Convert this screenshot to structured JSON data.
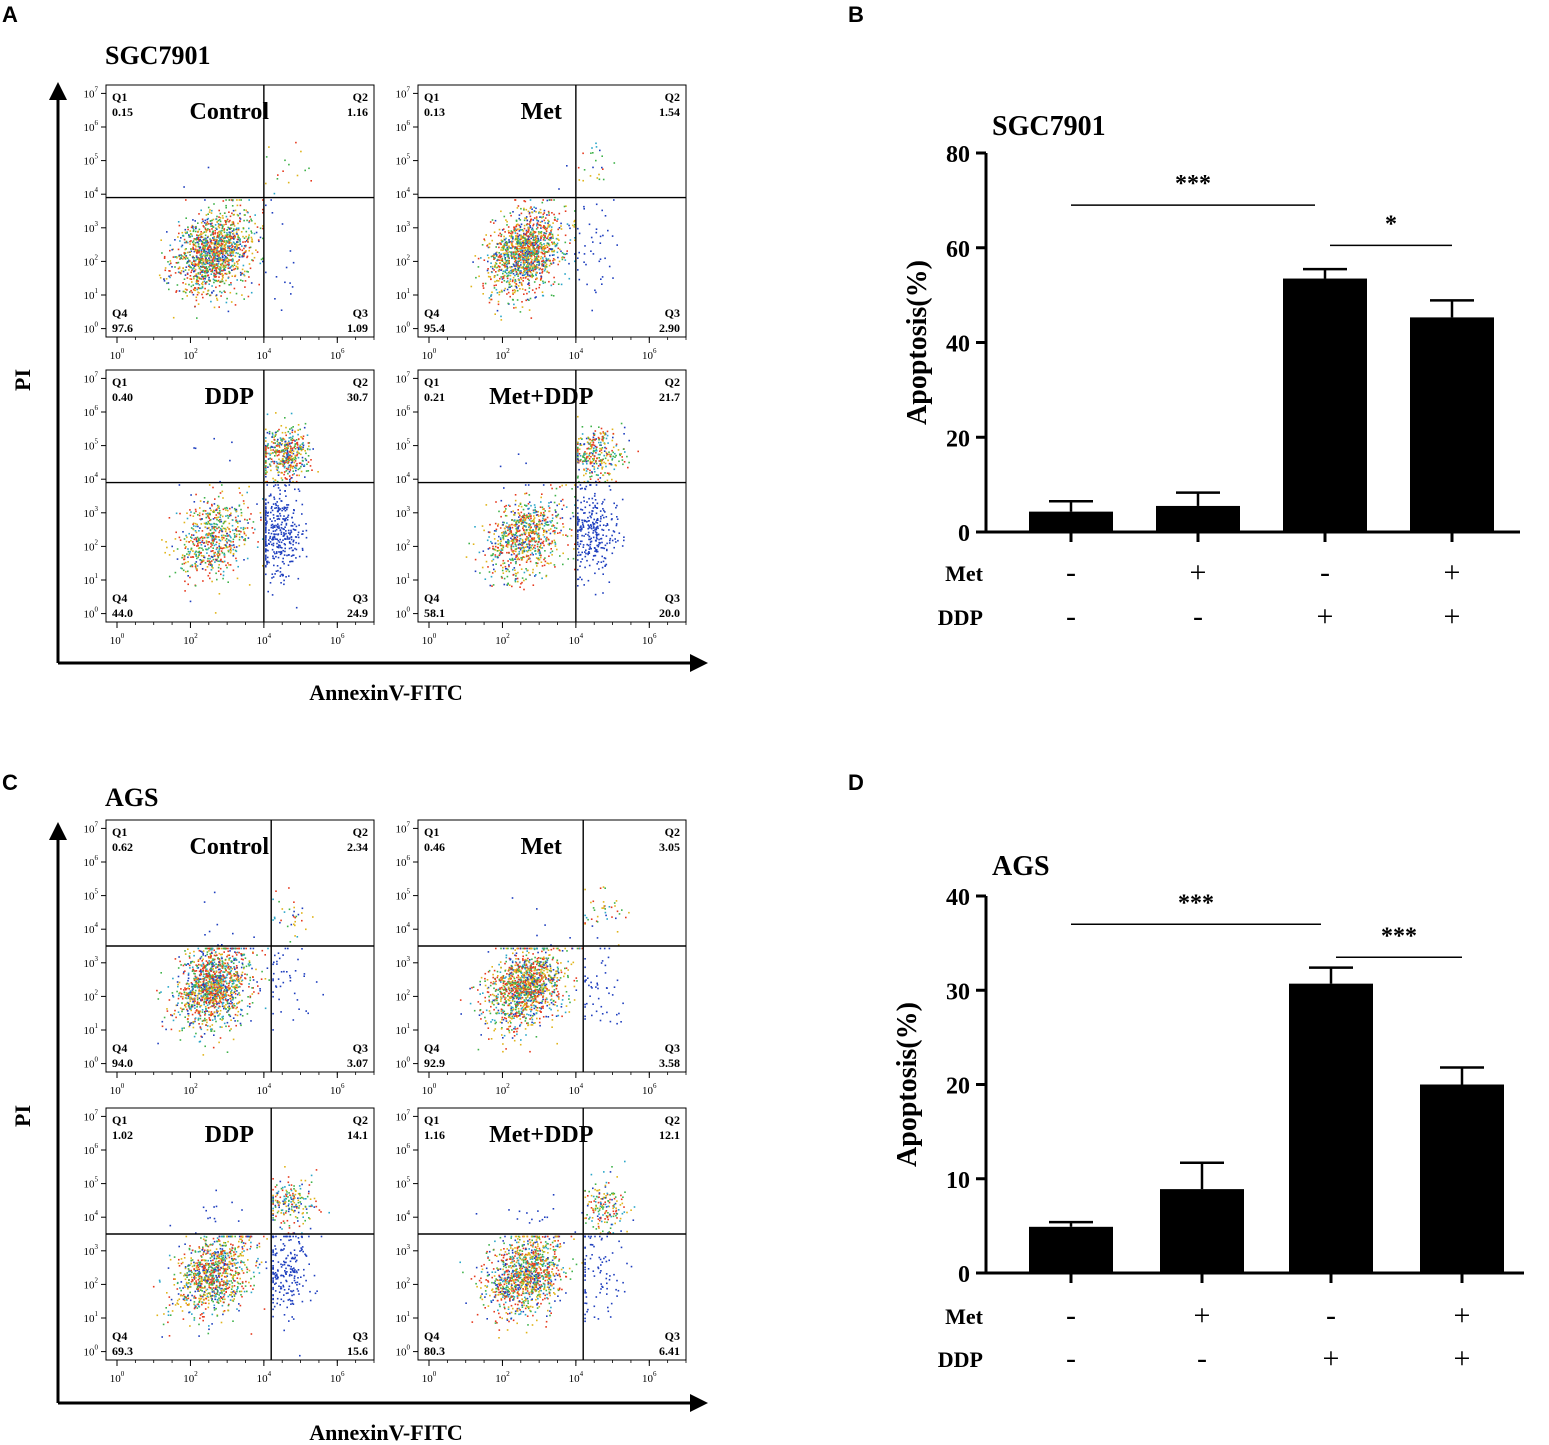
{
  "panels": {
    "A": {
      "letter": "A",
      "cell_line": "SGC7901",
      "y_axis_label": "PI",
      "x_axis_label": "AnnexinV-FITC"
    },
    "B": {
      "letter": "B"
    },
    "C": {
      "letter": "C",
      "cell_line": "AGS",
      "y_axis_label": "PI",
      "x_axis_label": "AnnexinV-FITC"
    },
    "D": {
      "letter": "D"
    }
  },
  "chart_data": [
    {
      "panel": "A",
      "type": "scatter",
      "title": "SGC7901",
      "xlabel": "AnnexinV-FITC",
      "ylabel": "PI",
      "x_ticks": [
        "10^0",
        "10^2",
        "10^4",
        "10^6"
      ],
      "y_ticks": [
        "10^0",
        "10^1",
        "10^2",
        "10^3",
        "10^4",
        "10^5",
        "10^6",
        "10^7"
      ],
      "gate_x_log10": 4.0,
      "gate_y_log10": 3.9,
      "subplots": [
        {
          "name": "Control",
          "q1": "0.15",
          "q2": "1.16",
          "q3": "1.09",
          "q4": "97.6"
        },
        {
          "name": "Met",
          "q1": "0.13",
          "q2": "1.54",
          "q3": "2.90",
          "q4": "95.4"
        },
        {
          "name": "DDP",
          "q1": "0.40",
          "q2": "30.7",
          "q3": "24.9",
          "q4": "44.0"
        },
        {
          "name": "Met+DDP",
          "q1": "0.21",
          "q2": "21.7",
          "q3": "20.0",
          "q4": "58.1"
        }
      ]
    },
    {
      "panel": "B",
      "type": "bar",
      "title": "SGC7901",
      "xlabel": "",
      "ylabel": "Apoptosis(%)",
      "ylim": [
        0,
        80
      ],
      "yticks": [
        "0",
        "20",
        "40",
        "60",
        "80"
      ],
      "groups": [
        {
          "met": "-",
          "ddp": "-"
        },
        {
          "met": "+",
          "ddp": "-"
        },
        {
          "met": "-",
          "ddp": "+"
        },
        {
          "met": "+",
          "ddp": "+"
        }
      ],
      "values": [
        4.3,
        5.5,
        53.5,
        45.3
      ],
      "errors": [
        2.2,
        2.8,
        2.0,
        3.6
      ],
      "row_labels": [
        "Met",
        "DDP"
      ],
      "significance": [
        {
          "from": 0,
          "to": 2,
          "label": "***",
          "y": 69
        },
        {
          "from": 2,
          "to": 3,
          "label": "*",
          "y": 60.5
        }
      ]
    },
    {
      "panel": "C",
      "type": "scatter",
      "title": "AGS",
      "xlabel": "AnnexinV-FITC",
      "ylabel": "PI",
      "x_ticks": [
        "10^0",
        "10^2",
        "10^4",
        "10^6"
      ],
      "y_ticks": [
        "10^0",
        "10^1",
        "10^2",
        "10^3",
        "10^4",
        "10^5",
        "10^6",
        "10^7"
      ],
      "gate_x_log10": 4.2,
      "gate_y_log10": 3.5,
      "subplots": [
        {
          "name": "Control",
          "q1": "0.62",
          "q2": "2.34",
          "q3": "3.07",
          "q4": "94.0"
        },
        {
          "name": "Met",
          "q1": "0.46",
          "q2": "3.05",
          "q3": "3.58",
          "q4": "92.9"
        },
        {
          "name": "DDP",
          "q1": "1.02",
          "q2": "14.1",
          "q3": "15.6",
          "q4": "69.3"
        },
        {
          "name": "Met+DDP",
          "q1": "1.16",
          "q2": "12.1",
          "q3": "6.41",
          "q4": "80.3"
        }
      ]
    },
    {
      "panel": "D",
      "type": "bar",
      "title": "AGS",
      "xlabel": "",
      "ylabel": "Apoptosis(%)",
      "ylim": [
        0,
        40
      ],
      "yticks": [
        "0",
        "10",
        "20",
        "30",
        "40"
      ],
      "groups": [
        {
          "met": "-",
          "ddp": "-"
        },
        {
          "met": "+",
          "ddp": "-"
        },
        {
          "met": "-",
          "ddp": "+"
        },
        {
          "met": "+",
          "ddp": "+"
        }
      ],
      "values": [
        4.9,
        8.9,
        30.7,
        20.0
      ],
      "errors": [
        0.5,
        2.8,
        1.7,
        1.8
      ],
      "row_labels": [
        "Met",
        "DDP"
      ],
      "significance": [
        {
          "from": 0,
          "to": 2,
          "label": "***",
          "y": 37.0
        },
        {
          "from": 2,
          "to": 3,
          "label": "***",
          "y": 33.5
        }
      ]
    }
  ]
}
